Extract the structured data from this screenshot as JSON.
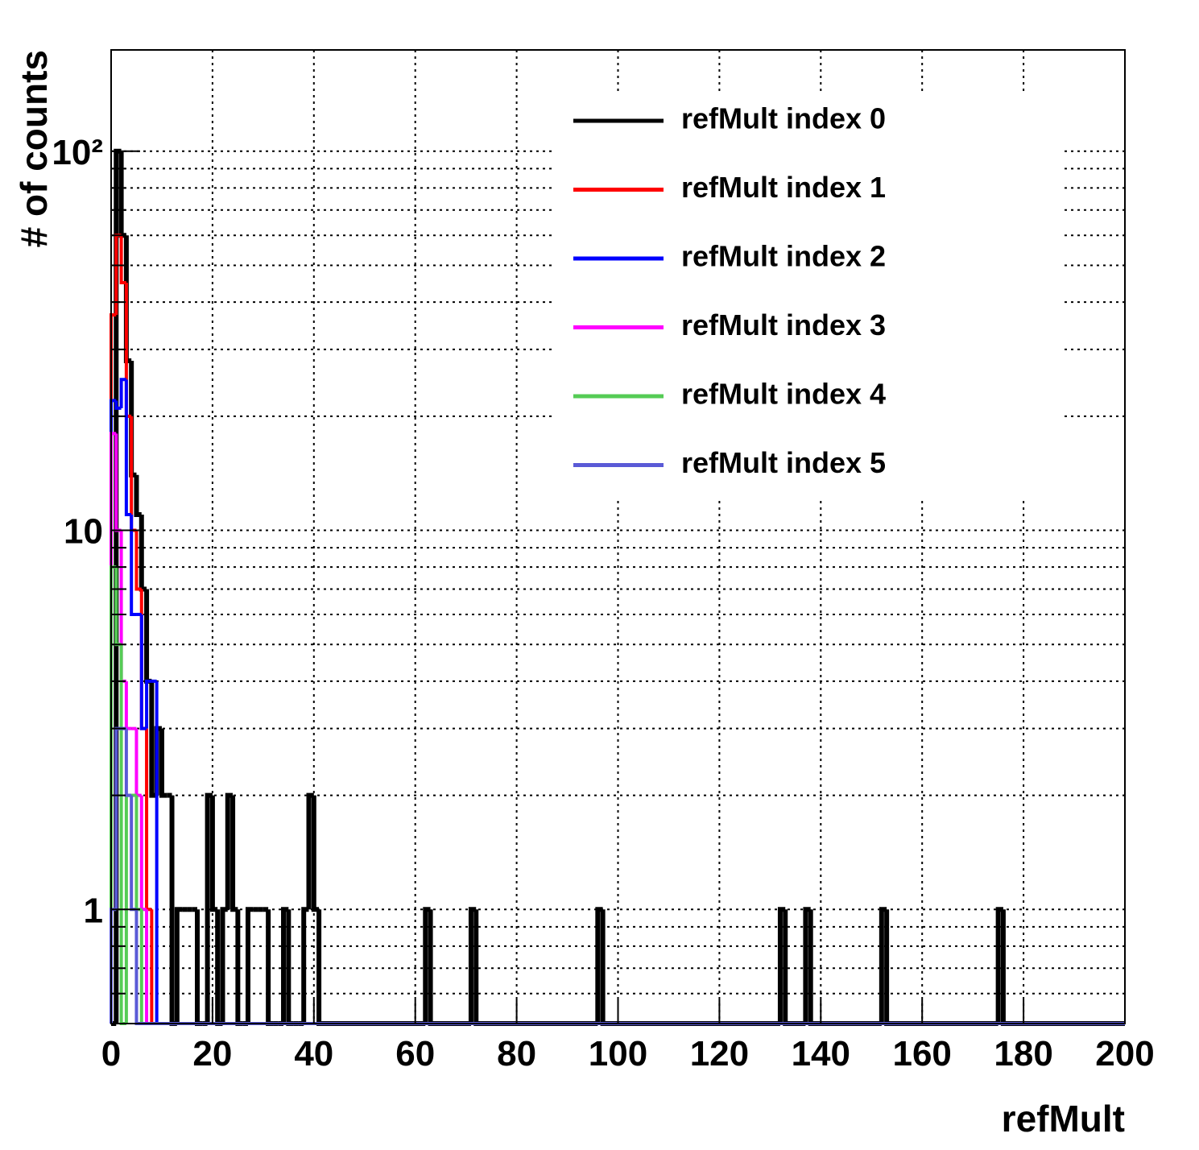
{
  "chart_data": {
    "type": "histogram",
    "xlabel": "refMult",
    "ylabel": "# of counts",
    "xlim": [
      0,
      200
    ],
    "xticks": [
      0,
      20,
      40,
      60,
      80,
      100,
      120,
      140,
      160,
      180,
      200
    ],
    "ylim": [
      0.5,
      185
    ],
    "log_y": true,
    "yticks": [
      1,
      10,
      {
        "value": 100,
        "label": "10²"
      }
    ],
    "yticks_minor": [
      0.6,
      0.7,
      0.8,
      0.9,
      2,
      3,
      4,
      5,
      6,
      7,
      8,
      9,
      20,
      30,
      40,
      50,
      60,
      70,
      80,
      90
    ],
    "grid": true,
    "legend": "upper right",
    "series": [
      {
        "name": "refMult index 0",
        "color": "#000000",
        "bins": [
          0,
          1,
          2,
          3,
          4,
          5,
          6,
          7,
          8,
          9,
          10,
          11,
          12,
          13,
          14,
          15,
          16,
          17,
          18,
          19,
          20,
          21,
          22,
          23,
          24,
          25,
          26,
          27,
          28,
          29,
          30,
          31,
          32,
          33,
          34,
          35,
          36,
          37,
          38,
          39,
          40,
          41,
          62,
          63,
          71,
          72,
          96,
          97,
          132,
          133,
          137,
          138,
          152,
          153,
          175,
          176,
          200
        ],
        "values": [
          0,
          100,
          60,
          28,
          14,
          11,
          7,
          4,
          2,
          3,
          2,
          2,
          0,
          1,
          1,
          1,
          1,
          0,
          0,
          2,
          1,
          0,
          1,
          2,
          1,
          0,
          0,
          1,
          1,
          1,
          1,
          0,
          0,
          0,
          1,
          0,
          0,
          0,
          1,
          2,
          1,
          0,
          1,
          0,
          1,
          0,
          1,
          0,
          1,
          0,
          1,
          0,
          1,
          0,
          1,
          0
        ]
      },
      {
        "name": "refMult index 1",
        "color": "#ff0000",
        "bins": [
          0,
          1,
          2,
          3,
          4,
          5,
          6,
          7,
          8,
          9,
          200
        ],
        "values": [
          37,
          60,
          45,
          20,
          10,
          7,
          3,
          1,
          0,
          0
        ]
      },
      {
        "name": "refMult index 2",
        "color": "#0000ff",
        "bins": [
          0,
          1,
          2,
          3,
          4,
          5,
          6,
          7,
          8,
          9,
          200
        ],
        "values": [
          22,
          21,
          25,
          11,
          6,
          6,
          3,
          4,
          4,
          0
        ]
      },
      {
        "name": "refMult index 3",
        "color": "#ff00ff",
        "bins": [
          0,
          1,
          2,
          3,
          4,
          5,
          6,
          7,
          200
        ],
        "values": [
          18,
          10,
          4,
          3,
          3,
          2,
          1,
          0
        ]
      },
      {
        "name": "refMult index 4",
        "color": "#55cc55",
        "bins": [
          0,
          1,
          2,
          3,
          4,
          5,
          6,
          200
        ],
        "values": [
          8,
          5,
          0,
          2,
          2,
          1,
          0
        ]
      },
      {
        "name": "refMult index 5",
        "color": "#5a5ad6",
        "bins": [
          0,
          1,
          2,
          3,
          4,
          5,
          200
        ],
        "values": [
          1,
          3,
          3,
          2,
          1,
          0
        ]
      }
    ]
  }
}
